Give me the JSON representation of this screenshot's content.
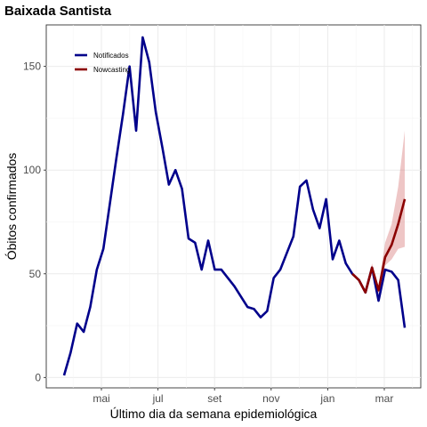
{
  "chart_data": {
    "type": "line",
    "title": "Baixada Santista",
    "xlabel": "Último dia da semana epidemiológica",
    "ylabel": "Óbitos confirmados",
    "x_tick_labels": [
      "mai",
      "jul",
      "set",
      "nov",
      "jan",
      "mar"
    ],
    "y_ticks": [
      0,
      50,
      100,
      150
    ],
    "ylim": [
      -5,
      170
    ],
    "grid": true,
    "legend_position": "top-left",
    "series": [
      {
        "name": "Notificados",
        "color": "#00008b",
        "values": [
          1,
          12,
          26,
          22,
          34,
          52,
          62,
          84,
          106,
          127,
          150,
          119,
          164,
          152,
          128,
          111,
          93,
          100,
          91,
          67,
          65,
          52,
          66,
          52,
          52,
          48,
          44,
          39,
          34,
          33,
          29,
          32,
          48,
          52,
          60,
          68,
          92,
          95,
          81,
          72,
          86,
          57,
          66,
          55,
          50,
          47,
          41,
          53,
          37,
          52,
          51,
          47,
          24
        ]
      },
      {
        "name": "Nowcasting",
        "color": "#8b0000",
        "start_index": 44,
        "values": [
          50,
          47,
          41,
          53,
          42,
          58,
          64,
          74,
          86
        ],
        "lower": [
          50,
          47,
          41,
          51,
          40,
          54,
          57,
          62,
          63
        ],
        "upper": [
          50,
          47,
          41,
          55,
          44,
          65,
          74,
          92,
          119
        ]
      }
    ]
  }
}
